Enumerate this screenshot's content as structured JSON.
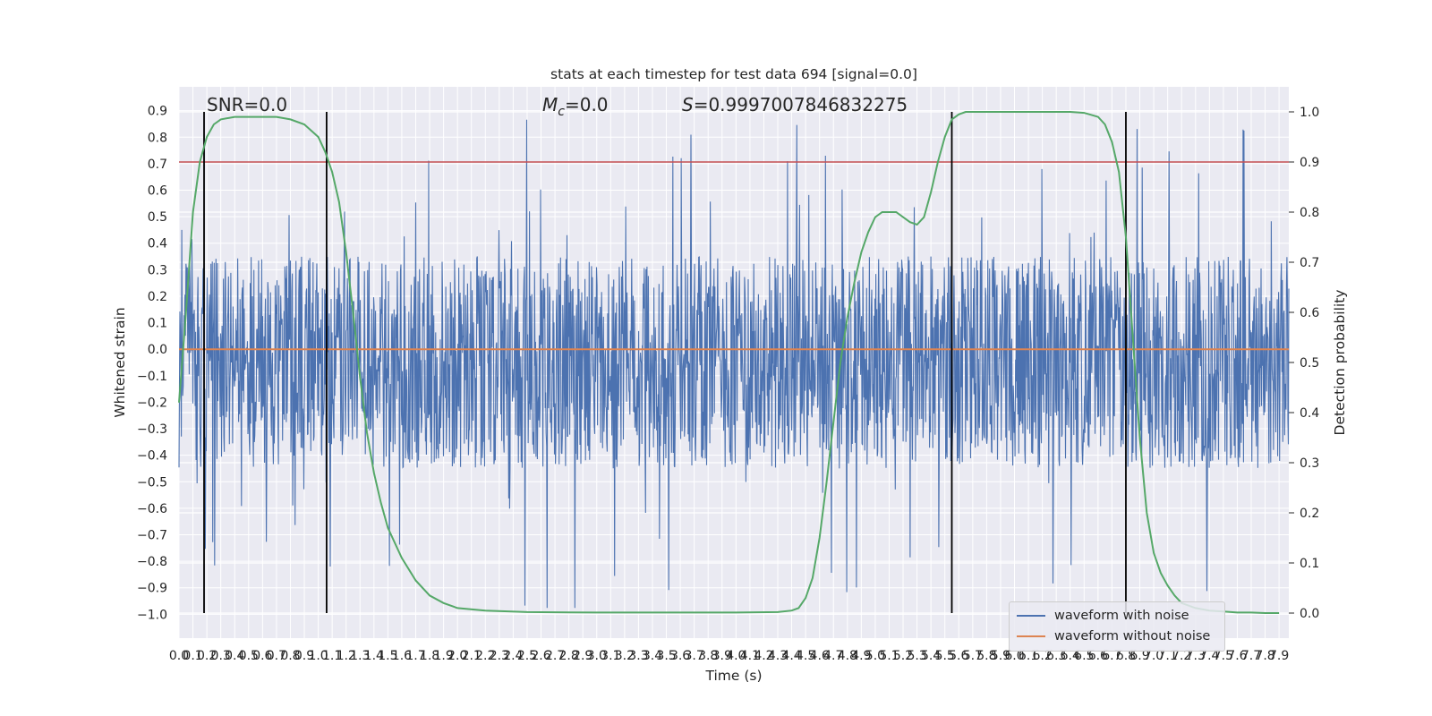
{
  "chart_data": {
    "type": "line",
    "title": "stats at each timestep for test data 694 [signal=0.0]",
    "xlabel": "Time (s)",
    "ylabel_left": "Whitened strain",
    "ylabel_right": "Detection probability",
    "xlim": [
      0.0,
      7.97
    ],
    "ylim_left": [
      -1.09,
      0.99
    ],
    "ylim_right": [
      -0.05,
      1.05
    ],
    "grid": true,
    "x_ticks": [
      "0.0",
      "0.1",
      "0.2",
      "0.3",
      "0.4",
      "0.5",
      "0.6",
      "0.7",
      "0.8",
      "0.9",
      "1.0",
      "1.1",
      "1.2",
      "1.3",
      "1.4",
      "1.5",
      "1.6",
      "1.7",
      "1.8",
      "1.9",
      "2.0",
      "2.1",
      "2.2",
      "2.3",
      "2.4",
      "2.5",
      "2.6",
      "2.7",
      "2.8",
      "2.9",
      "3.0",
      "3.1",
      "3.2",
      "3.3",
      "3.4",
      "3.5",
      "3.6",
      "3.7",
      "3.8",
      "3.9",
      "4.0",
      "4.1",
      "4.2",
      "4.3",
      "4.4",
      "4.5",
      "4.6",
      "4.7",
      "4.8",
      "4.9",
      "5.0",
      "5.1",
      "5.2",
      "5.3",
      "5.4",
      "5.5",
      "5.6",
      "5.7",
      "5.8",
      "5.9",
      "6.0",
      "6.1",
      "6.2",
      "6.3",
      "6.4",
      "6.5",
      "6.6",
      "6.7",
      "6.8",
      "6.9",
      "7.0",
      "7.1",
      "7.2",
      "7.3",
      "7.4",
      "7.5",
      "7.6",
      "7.7",
      "7.8",
      "7.9"
    ],
    "y_ticks_left": [
      "-1.0",
      "-0.9",
      "-0.8",
      "-0.7",
      "-0.6",
      "-0.5",
      "-0.4",
      "-0.3",
      "-0.2",
      "-0.1",
      "0.0",
      "0.1",
      "0.2",
      "0.3",
      "0.4",
      "0.5",
      "0.6",
      "0.7",
      "0.8",
      "0.9"
    ],
    "y_ticks_right": [
      "0.0",
      "0.1",
      "0.2",
      "0.3",
      "0.4",
      "0.5",
      "0.6",
      "0.7",
      "0.8",
      "0.9",
      "1.0"
    ],
    "annotations": {
      "snr": "SNR=0.0",
      "mc_symbol": "M",
      "mc_sub": "c",
      "mc_value": "=0.0",
      "s_symbol": "S",
      "s_value": "=0.9997007846832275"
    },
    "threshold_line": {
      "axis": "right",
      "y": 0.9,
      "color": "#c44e52"
    },
    "vertical_lines": [
      0.18,
      1.06,
      5.55,
      6.8
    ],
    "series": [
      {
        "name": "waveform with noise",
        "axis": "left",
        "color": "#4c72b0",
        "amplitude_band": [
          -0.45,
          0.35
        ],
        "peak_range": [
          -0.99,
          0.89
        ]
      },
      {
        "name": "waveform without noise",
        "axis": "left",
        "color": "#dd8452",
        "y_constant": 0.0
      },
      {
        "name": "detection probability",
        "axis": "right",
        "color": "#55a868",
        "x": [
          0.0,
          0.05,
          0.1,
          0.15,
          0.2,
          0.25,
          0.3,
          0.4,
          0.5,
          0.6,
          0.7,
          0.8,
          0.9,
          1.0,
          1.05,
          1.1,
          1.15,
          1.2,
          1.25,
          1.3,
          1.35,
          1.4,
          1.45,
          1.5,
          1.6,
          1.7,
          1.8,
          1.9,
          2.0,
          2.2,
          2.5,
          3.0,
          3.5,
          4.0,
          4.3,
          4.4,
          4.45,
          4.5,
          4.55,
          4.6,
          4.65,
          4.7,
          4.75,
          4.8,
          4.85,
          4.9,
          4.95,
          5.0,
          5.05,
          5.1,
          5.15,
          5.2,
          5.25,
          5.3,
          5.35,
          5.4,
          5.45,
          5.5,
          5.55,
          5.6,
          5.65,
          5.7,
          5.75,
          5.8,
          5.9,
          6.0,
          6.2,
          6.4,
          6.5,
          6.6,
          6.65,
          6.7,
          6.75,
          6.8,
          6.85,
          6.9,
          6.95,
          7.0,
          7.05,
          7.1,
          7.15,
          7.2,
          7.3,
          7.4,
          7.5,
          7.6,
          7.7,
          7.8,
          7.9
        ],
        "values": [
          0.42,
          0.6,
          0.8,
          0.9,
          0.95,
          0.975,
          0.985,
          0.99,
          0.99,
          0.99,
          0.99,
          0.985,
          0.975,
          0.95,
          0.92,
          0.88,
          0.82,
          0.72,
          0.6,
          0.47,
          0.36,
          0.28,
          0.22,
          0.17,
          0.11,
          0.065,
          0.035,
          0.02,
          0.01,
          0.005,
          0.002,
          0.001,
          0.001,
          0.001,
          0.002,
          0.005,
          0.01,
          0.03,
          0.07,
          0.15,
          0.26,
          0.38,
          0.5,
          0.59,
          0.66,
          0.72,
          0.76,
          0.79,
          0.8,
          0.8,
          0.8,
          0.79,
          0.78,
          0.775,
          0.79,
          0.84,
          0.9,
          0.95,
          0.985,
          0.995,
          1.0,
          1.0,
          1.0,
          1.0,
          1.0,
          1.0,
          1.0,
          1.0,
          0.998,
          0.99,
          0.975,
          0.94,
          0.88,
          0.75,
          0.55,
          0.35,
          0.2,
          0.12,
          0.08,
          0.055,
          0.035,
          0.02,
          0.01,
          0.005,
          0.003,
          0.001,
          0.001,
          0.0,
          0.0
        ]
      }
    ],
    "legend": {
      "placement": "lower-right",
      "entries": [
        "waveform with noise",
        "waveform without noise"
      ]
    },
    "colors": {
      "plot_background": "#eaeaf2",
      "grid": "#ffffff",
      "text": "#262626"
    }
  }
}
